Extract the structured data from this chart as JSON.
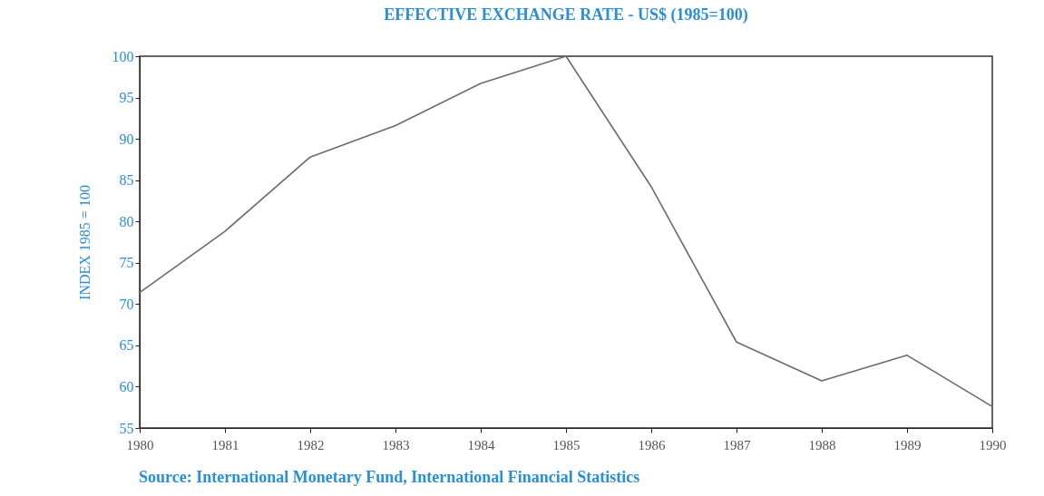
{
  "chart_data": {
    "type": "line",
    "title": "EFFECTIVE EXCHANGE RATE - US$ (1985=100)",
    "ylabel": "INDEX 1985 = 100",
    "x": [
      1980,
      1981,
      1982,
      1983,
      1984,
      1985,
      1986,
      1987,
      1988,
      1989,
      1990
    ],
    "series": [
      {
        "color": "#6b6b6b",
        "values": [
          71.4,
          78.8,
          87.8,
          91.6,
          96.7,
          100,
          84.2,
          65.4,
          60.7,
          63.8,
          57.6
        ]
      }
    ],
    "xlim": [
      1980,
      1990
    ],
    "xticks": [
      1980,
      1981,
      1982,
      1983,
      1984,
      1985,
      1986,
      1987,
      1988,
      1989,
      1990
    ],
    "ylim": [
      55,
      100
    ],
    "yticks": [
      55,
      60,
      65,
      70,
      75,
      80,
      85,
      90,
      95,
      100
    ],
    "grid": false,
    "marker": "none",
    "line_style": "solid",
    "annotations": [
      "Source: International Monetary Fund, International Financial Statistics"
    ]
  }
}
